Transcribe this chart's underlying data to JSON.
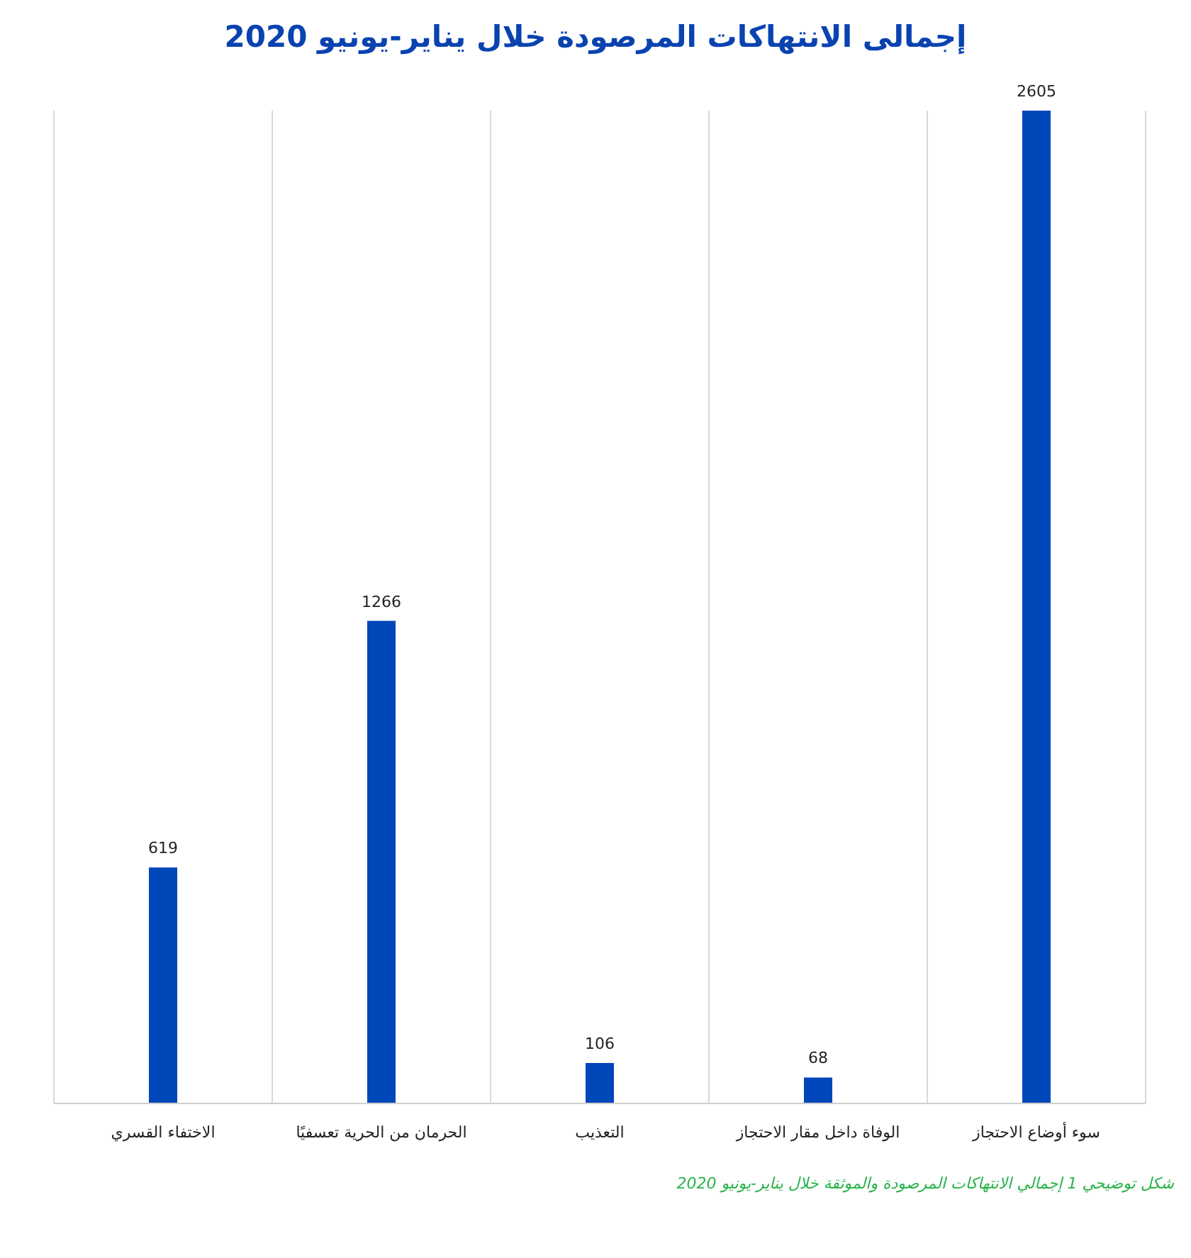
{
  "chart_data": {
    "type": "bar",
    "title": "إجمالى الانتهاكات المرصودة خلال يناير-يونيو 2020",
    "categories": [
      "الاختفاء القسري",
      "الحرمان من الحرية تعسفيًا",
      "التعذيب",
      "الوفاة داخل مقار الاحتجاز",
      "سوء أوضاع الاحتجاز"
    ],
    "values": [
      619,
      1266,
      106,
      68,
      2605
    ],
    "color": "#0047ba",
    "data_labels": true,
    "grid": "x",
    "annotations": [
      "شكل توضيحي 1 إجمالي الانتهاكات المرصودة والموثقة خلال يناير-يونيو 2020"
    ]
  }
}
